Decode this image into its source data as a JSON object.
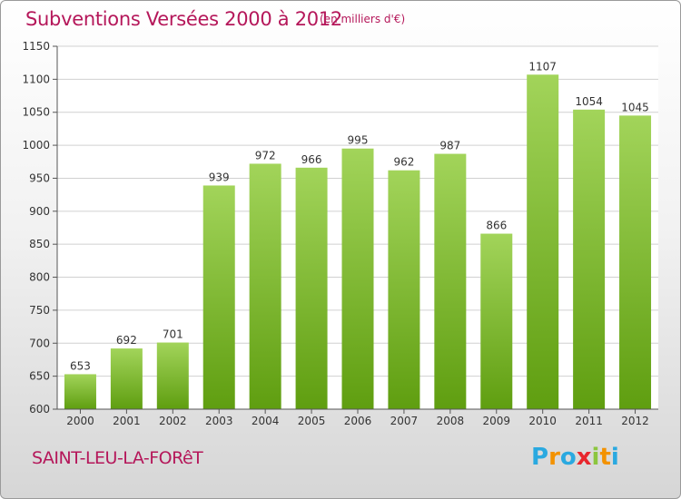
{
  "header": {
    "title": "Subventions Versées 2000 à 2012",
    "unit": "(en milliers d'€)"
  },
  "footer": {
    "city": "SAINT-LEU-LA-FORêT",
    "logo": {
      "letters": [
        "P",
        "r",
        "o",
        "x",
        "i",
        "t",
        "i"
      ],
      "colors": [
        "#2aa9e0",
        "#f39200",
        "#2aa9e0",
        "#e8262d",
        "#8cc63f",
        "#f39200",
        "#2aa9e0"
      ]
    }
  },
  "colors": {
    "accent": "#b5175a",
    "bar_top": "#a2d45a",
    "bar_bottom": "#5f9e10",
    "grid": "#d0d0d0"
  },
  "chart_data": {
    "type": "bar",
    "categories": [
      "2000",
      "2001",
      "2002",
      "2003",
      "2004",
      "2005",
      "2006",
      "2007",
      "2008",
      "2009",
      "2010",
      "2011",
      "2012"
    ],
    "values": [
      653,
      692,
      701,
      939,
      972,
      966,
      995,
      962,
      987,
      866,
      1107,
      1054,
      1045
    ],
    "title": "Subventions Versées 2000 à 2012",
    "xlabel": "",
    "ylabel": "",
    "ylim": [
      600,
      1150
    ],
    "yticks": [
      600,
      650,
      700,
      750,
      800,
      850,
      900,
      950,
      1000,
      1050,
      1100,
      1150
    ],
    "grid": true,
    "legend": "none"
  }
}
